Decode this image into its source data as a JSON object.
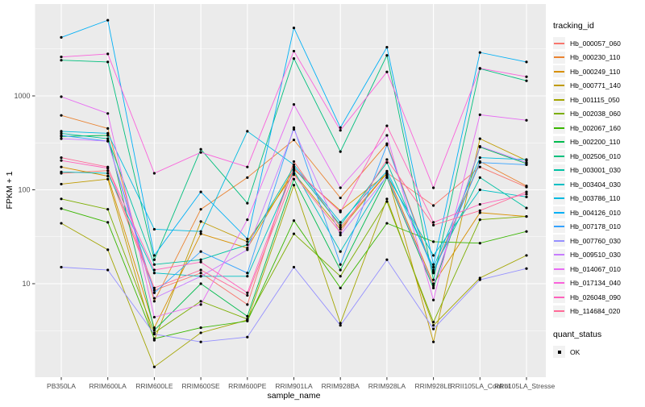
{
  "chart_data": {
    "type": "line",
    "title": "",
    "xlabel": "sample_name",
    "ylabel": "FPKM + 1",
    "y_scale": "log10",
    "yticks": [
      10,
      100,
      1000
    ],
    "ylim": [
      1.2,
      9500
    ],
    "grid": true,
    "legend_position": "right",
    "categories": [
      "PB350LA",
      "RRIM600LA",
      "RRIM600LE",
      "RRIM600SE",
      "RRIM600PE",
      "RRIM901LA",
      "RRIM928BA",
      "RRIM928LA",
      "RRIM928LE",
      "RRII105LA_Control",
      "RRII105LA_Stressed"
    ],
    "series": [
      {
        "name": "Hb_000057_060",
        "color": "#F8766D",
        "values": [
          150,
          160,
          8.5,
          13,
          6,
          200,
          40,
          152,
          68,
          175,
          107
        ]
      },
      {
        "name": "Hb_000230_110",
        "color": "#EA8331",
        "values": [
          620,
          450,
          6.5,
          62,
          135,
          340,
          82,
          310,
          13.5,
          200,
          110
        ]
      },
      {
        "name": "Hb_000249_110",
        "color": "#D89000",
        "values": [
          175,
          140,
          3.4,
          34,
          24,
          165,
          60,
          148,
          10,
          57,
          52
        ]
      },
      {
        "name": "Hb_000771_140",
        "color": "#C09B00",
        "values": [
          115,
          130,
          2.5,
          46,
          28,
          150,
          38,
          150,
          2.4,
          350,
          205
        ]
      },
      {
        "name": "Hb_001115_050",
        "color": "#A3A500",
        "values": [
          44,
          23,
          1.3,
          3.0,
          4.1,
          112,
          3.8,
          80,
          3.6,
          11.5,
          20
        ]
      },
      {
        "name": "Hb_002038_060",
        "color": "#7CAE00",
        "values": [
          80,
          62,
          3.0,
          6.5,
          4.2,
          34,
          12,
          75,
          3.9,
          48,
          52
        ]
      },
      {
        "name": "Hb_002067_160",
        "color": "#39B600",
        "values": [
          63,
          45,
          2.6,
          3.4,
          4.0,
          47,
          9,
          44,
          28,
          27,
          36
        ]
      },
      {
        "name": "Hb_002200_110",
        "color": "#00BB4E",
        "values": [
          370,
          380,
          3.2,
          10,
          4.5,
          130,
          14,
          135,
          9,
          285,
          190
        ]
      },
      {
        "name": "Hb_002506_010",
        "color": "#00BF7D",
        "values": [
          2400,
          2300,
          18,
          270,
          72,
          2500,
          255,
          2700,
          11,
          1950,
          1450
        ]
      },
      {
        "name": "Hb_003001_030",
        "color": "#00C1A3",
        "values": [
          400,
          350,
          16,
          18,
          26,
          175,
          42,
          195,
          14,
          135,
          64
        ]
      },
      {
        "name": "Hb_003404_030",
        "color": "#00BFC4",
        "values": [
          155,
          150,
          13,
          12,
          12,
          160,
          22,
          143,
          20,
          100,
          84
        ]
      },
      {
        "name": "Hb_003786_110",
        "color": "#00BAE0",
        "values": [
          420,
          400,
          38,
          36,
          420,
          185,
          45,
          158,
          15,
          220,
          210
        ]
      },
      {
        "name": "Hb_004126_010",
        "color": "#00B0F6",
        "values": [
          4200,
          6400,
          20,
          95,
          30,
          5300,
          460,
          3300,
          16,
          2900,
          2300
        ]
      },
      {
        "name": "Hb_007178_010",
        "color": "#35A2FF",
        "values": [
          380,
          330,
          8,
          22,
          13,
          460,
          16,
          300,
          13,
          195,
          185
        ]
      },
      {
        "name": "Hb_007760_030",
        "color": "#9590FF",
        "values": [
          15,
          14,
          2.9,
          2.4,
          2.7,
          15,
          3.6,
          18,
          3.3,
          11,
          14.5
        ]
      },
      {
        "name": "Hb_009510_030",
        "color": "#C77CFF",
        "values": [
          350,
          330,
          7,
          12,
          23,
          440,
          33,
          140,
          9.5,
          290,
          195
        ]
      },
      {
        "name": "Hb_014067_010",
        "color": "#E76BF3",
        "values": [
          980,
          650,
          4.4,
          6,
          48,
          810,
          105,
          380,
          6.7,
          630,
          550
        ]
      },
      {
        "name": "Hb_017134_040",
        "color": "#FA62DB",
        "values": [
          2600,
          2800,
          150,
          250,
          175,
          3000,
          430,
          1800,
          105,
          1970,
          1600
        ]
      },
      {
        "name": "Hb_026048_090",
        "color": "#FF62BC",
        "values": [
          205,
          170,
          14,
          17,
          8,
          170,
          58,
          480,
          45,
          70,
          90
        ]
      },
      {
        "name": "Hb_114684_020",
        "color": "#FF6A98",
        "values": [
          220,
          175,
          9,
          14,
          7.5,
          145,
          35,
          210,
          42,
          60,
          95
        ]
      }
    ]
  },
  "legend": {
    "tracking_title": "tracking_id",
    "quant_title": "quant_status",
    "quant_ok_label": "OK"
  },
  "style_colors": {
    "panel_bg": "#EBEBEB",
    "grid": "#FFFFFF",
    "axis_text": "#4D4D4D",
    "tick": "#333333",
    "point": "#000000"
  }
}
